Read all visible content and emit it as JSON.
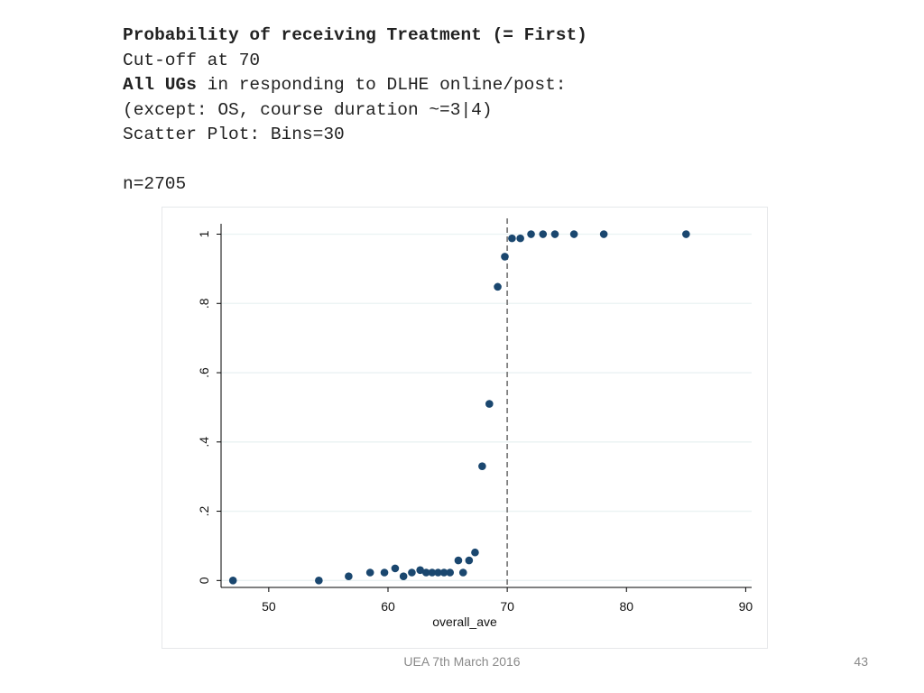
{
  "header": {
    "title": "Probability of receiving Treatment (= First)",
    "cutoff_line": "Cut-off at 70",
    "sample_bold": "All UGs",
    "sample_rest": " in responding to DLHE online/post:",
    "except_line": "(except: OS, course duration ~=3|4)",
    "scatter_line": "Scatter Plot: Bins=30",
    "n_line": "n=2705"
  },
  "footer": {
    "center_text": "UEA 7th March 2016",
    "page_number": "43"
  },
  "colors": {
    "marker": "#1a476f",
    "grid": "#eaf2f3",
    "axis": "#000000",
    "cutoff_line": "#808080"
  },
  "chart_data": {
    "type": "scatter",
    "title": "",
    "xlabel": "overall_ave",
    "ylabel": "",
    "xlim": [
      46,
      90.5
    ],
    "ylim": [
      -0.02,
      1.03
    ],
    "xticks": [
      50,
      60,
      70,
      80,
      90
    ],
    "xtick_labels": [
      "50",
      "60",
      "70",
      "80",
      "90"
    ],
    "yticks": [
      0,
      0.2,
      0.4,
      0.6,
      0.8,
      1
    ],
    "ytick_labels": [
      "0",
      ".2",
      ".4",
      ".6",
      ".8",
      "1"
    ],
    "grid": true,
    "cutoff_x": 70,
    "cutoff_style": "dashed vertical line",
    "series": [
      {
        "points": [
          {
            "x": 47.0,
            "y": 0.0
          },
          {
            "x": 54.2,
            "y": 0.0
          },
          {
            "x": 56.7,
            "y": 0.012
          },
          {
            "x": 58.5,
            "y": 0.023
          },
          {
            "x": 59.7,
            "y": 0.023
          },
          {
            "x": 60.6,
            "y": 0.035
          },
          {
            "x": 61.3,
            "y": 0.012
          },
          {
            "x": 62.0,
            "y": 0.023
          },
          {
            "x": 62.7,
            "y": 0.03
          },
          {
            "x": 63.2,
            "y": 0.023
          },
          {
            "x": 63.7,
            "y": 0.023
          },
          {
            "x": 64.2,
            "y": 0.023
          },
          {
            "x": 64.7,
            "y": 0.023
          },
          {
            "x": 65.2,
            "y": 0.023
          },
          {
            "x": 65.9,
            "y": 0.058
          },
          {
            "x": 66.3,
            "y": 0.023
          },
          {
            "x": 66.8,
            "y": 0.058
          },
          {
            "x": 67.3,
            "y": 0.081
          },
          {
            "x": 67.9,
            "y": 0.33
          },
          {
            "x": 68.5,
            "y": 0.51
          },
          {
            "x": 69.2,
            "y": 0.848
          },
          {
            "x": 69.8,
            "y": 0.935
          },
          {
            "x": 70.4,
            "y": 0.988
          },
          {
            "x": 71.1,
            "y": 0.988
          },
          {
            "x": 72.0,
            "y": 1.0
          },
          {
            "x": 73.0,
            "y": 1.0
          },
          {
            "x": 74.0,
            "y": 1.0
          },
          {
            "x": 75.6,
            "y": 1.0
          },
          {
            "x": 78.1,
            "y": 1.0
          },
          {
            "x": 85.0,
            "y": 1.0
          }
        ]
      }
    ]
  }
}
